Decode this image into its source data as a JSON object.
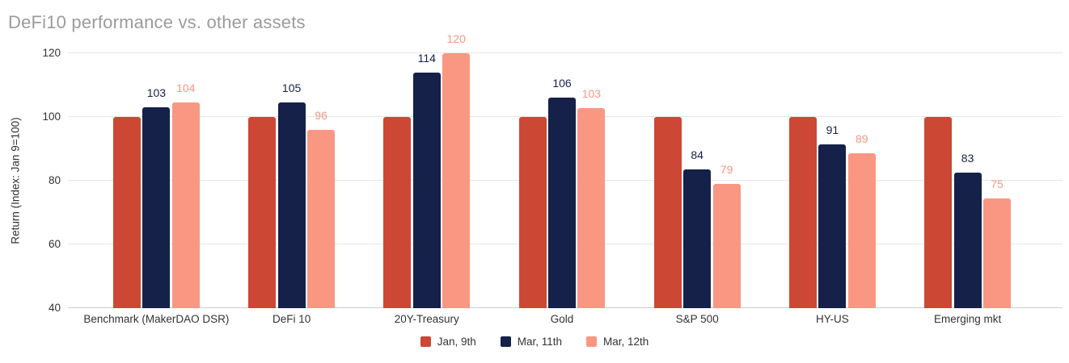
{
  "chart_data": {
    "type": "bar",
    "title": "DeFi10 performance vs. other assets",
    "xlabel": "",
    "ylabel": "Return (Index: Jan 9=100)",
    "ylim": [
      40,
      120
    ],
    "yticks": [
      40,
      60,
      80,
      100,
      120
    ],
    "grid": true,
    "legend_position": "bottom",
    "categories": [
      "Benchmark (MakerDAO DSR)",
      "DeFi 10",
      "20Y-Treasury",
      "Gold",
      "S&P 500",
      "HY-US",
      "Emerging mkt"
    ],
    "series": [
      {
        "name": "Jan, 9th",
        "color": "#CC4834",
        "values": [
          100,
          100,
          100,
          100,
          100,
          100,
          100
        ],
        "labels": [
          "",
          "",
          "",
          "",
          "",
          "",
          ""
        ]
      },
      {
        "name": "Mar, 11th",
        "color": "#152149",
        "values": [
          103,
          104.5,
          114,
          106,
          83.5,
          91.4,
          82.5
        ],
        "labels": [
          "103",
          "105",
          "114",
          "106",
          "84",
          "91",
          "83"
        ]
      },
      {
        "name": "Mar, 12th",
        "color": "#FA9783",
        "values": [
          104.5,
          96,
          120,
          102.8,
          79,
          88.6,
          74.5
        ],
        "labels": [
          "104",
          "96",
          "120",
          "103",
          "79",
          "89",
          "75"
        ]
      }
    ]
  },
  "style": {
    "title_color": "#9B9B9B",
    "axis_text_color": "#333333",
    "grid_color": "#E6E6E6",
    "baseline_color": "#CCCCCC",
    "background": "#FFFFFF"
  }
}
